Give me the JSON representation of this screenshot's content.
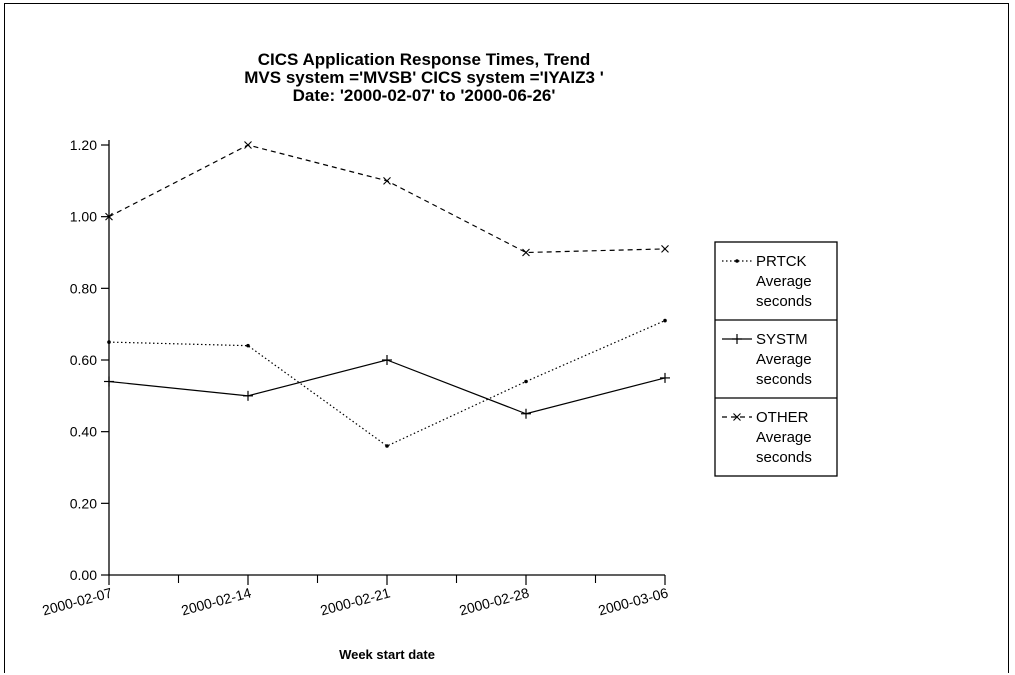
{
  "chart_data": {
    "type": "line",
    "title_lines": [
      "CICS Application Response Times, Trend",
      "MVS system ='MVSB'  CICS system ='IYAIZ3 '",
      "Date: '2000-02-07'  to  '2000-06-26'"
    ],
    "xlabel": "Week start date",
    "ylabel": "",
    "categories": [
      "2000-02-07",
      "2000-02-14",
      "2000-02-21",
      "2000-02-28",
      "2000-03-06"
    ],
    "y_ticks": [
      "0.00",
      "0.20",
      "0.40",
      "0.60",
      "0.80",
      "1.00",
      "1.20"
    ],
    "ylim": [
      0,
      1.2
    ],
    "grid": false,
    "legend_position": "right",
    "series": [
      {
        "name": "PRTCK",
        "name_lines": [
          "PRTCK",
          "Average",
          "seconds"
        ],
        "values": [
          0.65,
          0.64,
          0.36,
          0.54,
          0.71
        ],
        "line_style": "dotted",
        "marker": "dot",
        "color": "#000000"
      },
      {
        "name": "SYSTM",
        "name_lines": [
          "SYSTM",
          "Average",
          "seconds"
        ],
        "values": [
          0.54,
          0.5,
          0.6,
          0.45,
          0.55
        ],
        "line_style": "solid",
        "marker": "plus",
        "color": "#000000"
      },
      {
        "name": "OTHER",
        "name_lines": [
          "OTHER",
          "Average",
          "seconds"
        ],
        "values": [
          1.0,
          1.2,
          1.1,
          0.9,
          0.91
        ],
        "line_style": "dashed",
        "marker": "x",
        "color": "#000000"
      }
    ]
  }
}
